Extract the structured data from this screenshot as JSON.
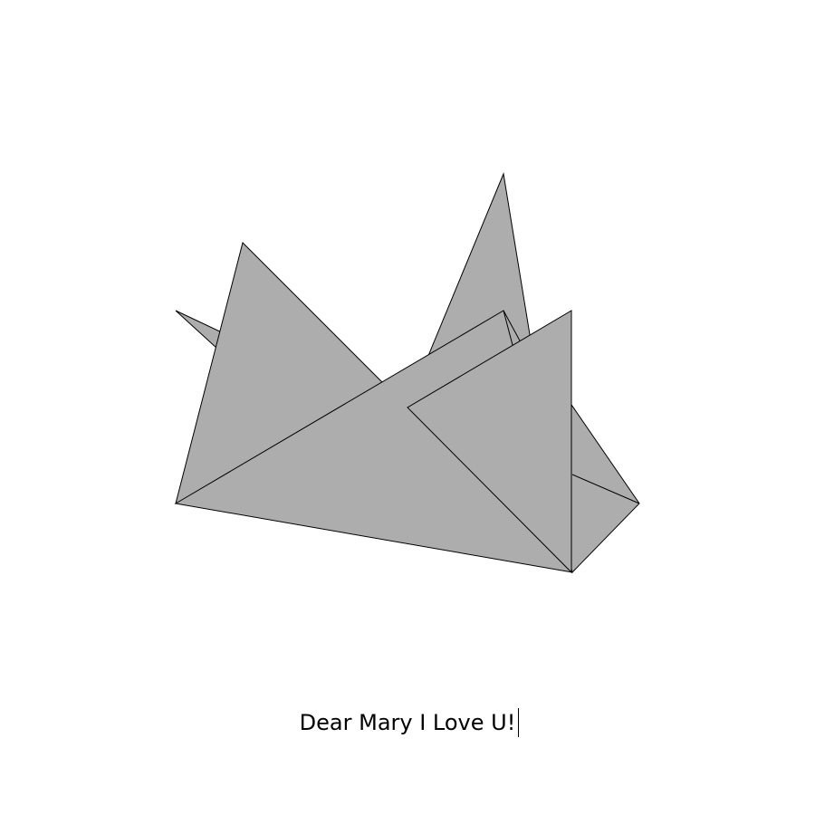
{
  "scene": {
    "subject_icon": "origami-crane-icon",
    "paper_color": "#ADADAD",
    "edge_color": "#000000",
    "background_color": "#FFFFFF"
  },
  "message": {
    "text": "Dear Mary I Love U!",
    "text_color": "#000000",
    "caret_visible": true
  }
}
